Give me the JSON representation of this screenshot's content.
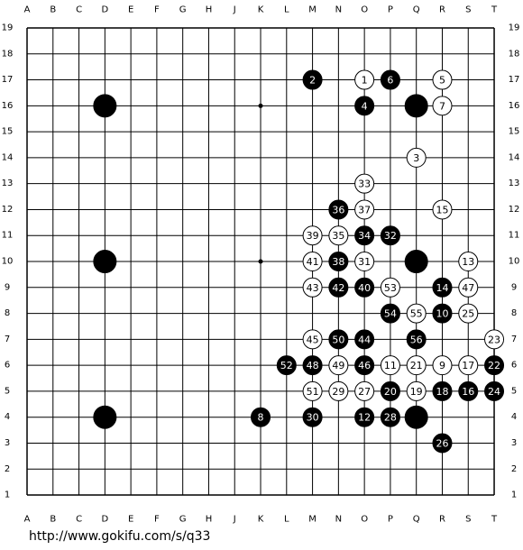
{
  "board": {
    "columns": [
      "A",
      "B",
      "C",
      "D",
      "E",
      "F",
      "G",
      "H",
      "J",
      "K",
      "L",
      "M",
      "N",
      "O",
      "P",
      "Q",
      "R",
      "S",
      "T"
    ],
    "rows": [
      19,
      18,
      17,
      16,
      15,
      14,
      13,
      12,
      11,
      10,
      9,
      8,
      7,
      6,
      5,
      4,
      3,
      2,
      1
    ],
    "stones": [
      {
        "color": "black",
        "col": "M",
        "row": 17,
        "label": 2
      },
      {
        "color": "white",
        "col": "O",
        "row": 17,
        "label": 1
      },
      {
        "color": "black",
        "col": "P",
        "row": 17,
        "label": 6
      },
      {
        "color": "white",
        "col": "R",
        "row": 17,
        "label": 5
      },
      {
        "color": "black",
        "col": "D",
        "row": 16
      },
      {
        "color": "black",
        "col": "O",
        "row": 16,
        "label": 4
      },
      {
        "color": "black",
        "col": "Q",
        "row": 16
      },
      {
        "color": "white",
        "col": "R",
        "row": 16,
        "label": 7
      },
      {
        "color": "white",
        "col": "Q",
        "row": 14,
        "label": 3
      },
      {
        "color": "white",
        "col": "O",
        "row": 13,
        "label": 33
      },
      {
        "color": "black",
        "col": "N",
        "row": 12,
        "label": 36
      },
      {
        "color": "white",
        "col": "O",
        "row": 12,
        "label": 37
      },
      {
        "color": "white",
        "col": "R",
        "row": 12,
        "label": 15
      },
      {
        "color": "white",
        "col": "M",
        "row": 11,
        "label": 39
      },
      {
        "color": "white",
        "col": "N",
        "row": 11,
        "label": 35
      },
      {
        "color": "black",
        "col": "O",
        "row": 11,
        "label": 34
      },
      {
        "color": "black",
        "col": "P",
        "row": 11,
        "label": 32
      },
      {
        "color": "black",
        "col": "D",
        "row": 10
      },
      {
        "color": "white",
        "col": "M",
        "row": 10,
        "label": 41
      },
      {
        "color": "black",
        "col": "N",
        "row": 10,
        "label": 38
      },
      {
        "color": "white",
        "col": "O",
        "row": 10,
        "label": 31
      },
      {
        "color": "black",
        "col": "Q",
        "row": 10
      },
      {
        "color": "white",
        "col": "S",
        "row": 10,
        "label": 13
      },
      {
        "color": "white",
        "col": "M",
        "row": 9,
        "label": 43
      },
      {
        "color": "black",
        "col": "N",
        "row": 9,
        "label": 42
      },
      {
        "color": "black",
        "col": "O",
        "row": 9,
        "label": 40
      },
      {
        "color": "white",
        "col": "P",
        "row": 9,
        "label": 53
      },
      {
        "color": "black",
        "col": "R",
        "row": 9,
        "label": 14
      },
      {
        "color": "white",
        "col": "S",
        "row": 9,
        "label": 47
      },
      {
        "color": "black",
        "col": "P",
        "row": 8,
        "label": 54
      },
      {
        "color": "white",
        "col": "Q",
        "row": 8,
        "label": 55
      },
      {
        "color": "black",
        "col": "R",
        "row": 8,
        "label": 10
      },
      {
        "color": "white",
        "col": "S",
        "row": 8,
        "label": 25
      },
      {
        "color": "white",
        "col": "M",
        "row": 7,
        "label": 45
      },
      {
        "color": "black",
        "col": "N",
        "row": 7,
        "label": 50
      },
      {
        "color": "black",
        "col": "O",
        "row": 7,
        "label": 44
      },
      {
        "color": "black",
        "col": "Q",
        "row": 7,
        "label": 56
      },
      {
        "color": "white",
        "col": "T",
        "row": 7,
        "label": 23
      },
      {
        "color": "black",
        "col": "L",
        "row": 6,
        "label": 52
      },
      {
        "color": "black",
        "col": "M",
        "row": 6,
        "label": 48
      },
      {
        "color": "white",
        "col": "N",
        "row": 6,
        "label": 49
      },
      {
        "color": "black",
        "col": "O",
        "row": 6,
        "label": 46
      },
      {
        "color": "white",
        "col": "P",
        "row": 6,
        "label": 11
      },
      {
        "color": "white",
        "col": "Q",
        "row": 6,
        "label": 21
      },
      {
        "color": "white",
        "col": "R",
        "row": 6,
        "label": 9
      },
      {
        "color": "white",
        "col": "S",
        "row": 6,
        "label": 17
      },
      {
        "color": "black",
        "col": "T",
        "row": 6,
        "label": 22
      },
      {
        "color": "white",
        "col": "M",
        "row": 5,
        "label": 51
      },
      {
        "color": "white",
        "col": "N",
        "row": 5,
        "label": 29
      },
      {
        "color": "white",
        "col": "O",
        "row": 5,
        "label": 27
      },
      {
        "color": "black",
        "col": "P",
        "row": 5,
        "label": 20
      },
      {
        "color": "white",
        "col": "Q",
        "row": 5,
        "label": 19
      },
      {
        "color": "black",
        "col": "R",
        "row": 5,
        "label": 18
      },
      {
        "color": "black",
        "col": "S",
        "row": 5,
        "label": 16
      },
      {
        "color": "black",
        "col": "T",
        "row": 5,
        "label": 24
      },
      {
        "color": "black",
        "col": "D",
        "row": 4
      },
      {
        "color": "black",
        "col": "K",
        "row": 4,
        "label": 8
      },
      {
        "color": "black",
        "col": "M",
        "row": 4,
        "label": 30
      },
      {
        "color": "black",
        "col": "O",
        "row": 4,
        "label": 12
      },
      {
        "color": "black",
        "col": "P",
        "row": 4,
        "label": 28
      },
      {
        "color": "black",
        "col": "Q",
        "row": 4
      },
      {
        "color": "black",
        "col": "R",
        "row": 3,
        "label": 26
      }
    ]
  },
  "footer": {
    "url": "http://www.gokifu.com/s/q33"
  }
}
